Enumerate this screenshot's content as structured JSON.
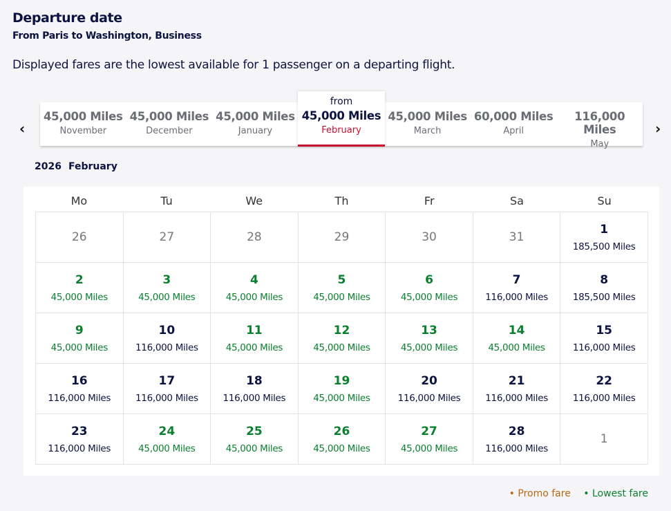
{
  "header": {
    "title": "Departure date",
    "subtitle": "From Paris to Washington, Business",
    "info": "Displayed fares are the lowest available for 1 passenger on a departing flight."
  },
  "months": [
    {
      "price": "45,000 Miles",
      "month": "November"
    },
    {
      "price": "45,000 Miles",
      "month": "December"
    },
    {
      "price": "45,000 Miles",
      "month": "January"
    },
    {
      "price": "45,000 Miles",
      "month": "February",
      "prefix": "from",
      "selected": true
    },
    {
      "price": "45,000 Miles",
      "month": "March"
    },
    {
      "price": "60,000 Miles",
      "month": "April"
    },
    {
      "price": "116,000 Miles",
      "month": "May"
    }
  ],
  "nav": {
    "prev": "‹",
    "next": "›"
  },
  "calendar": {
    "year": "2026",
    "month": "February",
    "weekdays": [
      "Mo",
      "Tu",
      "We",
      "Th",
      "Fr",
      "Sa",
      "Su"
    ],
    "weeks": [
      [
        {
          "day": "26",
          "type": "other"
        },
        {
          "day": "27",
          "type": "other"
        },
        {
          "day": "28",
          "type": "other"
        },
        {
          "day": "29",
          "type": "other"
        },
        {
          "day": "30",
          "type": "other"
        },
        {
          "day": "31",
          "type": "other"
        },
        {
          "day": "1",
          "fare": "185,500 Miles",
          "type": "normal"
        }
      ],
      [
        {
          "day": "2",
          "fare": "45,000 Miles",
          "type": "lowest"
        },
        {
          "day": "3",
          "fare": "45,000 Miles",
          "type": "lowest"
        },
        {
          "day": "4",
          "fare": "45,000 Miles",
          "type": "lowest"
        },
        {
          "day": "5",
          "fare": "45,000 Miles",
          "type": "lowest"
        },
        {
          "day": "6",
          "fare": "45,000 Miles",
          "type": "lowest"
        },
        {
          "day": "7",
          "fare": "116,000 Miles",
          "type": "normal"
        },
        {
          "day": "8",
          "fare": "185,500 Miles",
          "type": "normal"
        }
      ],
      [
        {
          "day": "9",
          "fare": "45,000 Miles",
          "type": "lowest"
        },
        {
          "day": "10",
          "fare": "116,000 Miles",
          "type": "normal"
        },
        {
          "day": "11",
          "fare": "45,000 Miles",
          "type": "lowest"
        },
        {
          "day": "12",
          "fare": "45,000 Miles",
          "type": "lowest"
        },
        {
          "day": "13",
          "fare": "45,000 Miles",
          "type": "lowest"
        },
        {
          "day": "14",
          "fare": "45,000 Miles",
          "type": "lowest"
        },
        {
          "day": "15",
          "fare": "116,000 Miles",
          "type": "normal"
        }
      ],
      [
        {
          "day": "16",
          "fare": "116,000 Miles",
          "type": "normal"
        },
        {
          "day": "17",
          "fare": "116,000 Miles",
          "type": "normal"
        },
        {
          "day": "18",
          "fare": "116,000 Miles",
          "type": "normal"
        },
        {
          "day": "19",
          "fare": "45,000 Miles",
          "type": "lowest"
        },
        {
          "day": "20",
          "fare": "116,000 Miles",
          "type": "normal"
        },
        {
          "day": "21",
          "fare": "116,000 Miles",
          "type": "normal"
        },
        {
          "day": "22",
          "fare": "116,000 Miles",
          "type": "normal"
        }
      ],
      [
        {
          "day": "23",
          "fare": "116,000 Miles",
          "type": "normal"
        },
        {
          "day": "24",
          "fare": "45,000 Miles",
          "type": "lowest"
        },
        {
          "day": "25",
          "fare": "45,000 Miles",
          "type": "lowest"
        },
        {
          "day": "26",
          "fare": "45,000 Miles",
          "type": "lowest"
        },
        {
          "day": "27",
          "fare": "45,000 Miles",
          "type": "lowest"
        },
        {
          "day": "28",
          "fare": "116,000 Miles",
          "type": "normal"
        },
        {
          "day": "1",
          "type": "other"
        }
      ]
    ]
  },
  "legend": {
    "promo": "Promo fare",
    "lowest": "Lowest fare",
    "promo_color": "#b7681a",
    "lowest_color": "#0a7f2e"
  }
}
